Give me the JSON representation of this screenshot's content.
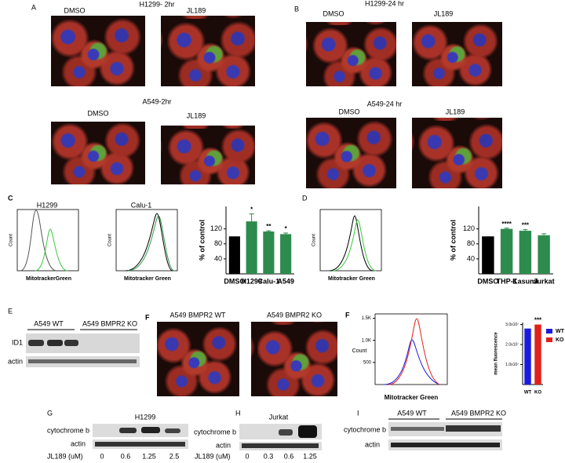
{
  "panels": {
    "A": {
      "label": "A",
      "top": {
        "title": "H1299- 2hr",
        "left": "DMSO",
        "right": "JL189"
      },
      "bottom": {
        "title": "A549-2hr",
        "left": "DMSO",
        "right": "JL189"
      }
    },
    "B": {
      "label": "B",
      "top": {
        "title": "H1299-24 hr",
        "left": "DMSO",
        "right": "JL189"
      },
      "bottom": {
        "title": "A549-24 hr",
        "left": "DMSO",
        "right": "JL189"
      }
    },
    "C": {
      "label": "C",
      "histograms": [
        {
          "title": "H1299",
          "ylabel": "Count",
          "xlabel": "MitotrackerGreen"
        },
        {
          "title": "Calu-1",
          "ylabel": "Count",
          "xlabel": "Mitotracker Green"
        }
      ],
      "bar_chart": {
        "type": "bar",
        "ylabel": "% of control",
        "categories": [
          "DMSO",
          "H1299",
          "Calu-1",
          "A549"
        ],
        "values": [
          100,
          140,
          113,
          106
        ],
        "errors": [
          null,
          20,
          2,
          3
        ],
        "significance": [
          null,
          "*",
          "**",
          "*"
        ],
        "colors": [
          "#000000",
          "#2e8b4e",
          "#2e8b4e",
          "#2e8b4e"
        ],
        "ylim": [
          0,
          180
        ],
        "yticks": [
          40,
          80,
          120
        ]
      }
    },
    "D": {
      "label": "D",
      "histogram": {
        "ylabel": "Count",
        "xlabel": "Mitotracker Green"
      },
      "bar_chart": {
        "type": "bar",
        "ylabel": "% of control",
        "categories": [
          "DMSO",
          "THP-1",
          "Kasumi",
          "Jurkat"
        ],
        "values": [
          100,
          120,
          115,
          103
        ],
        "errors": [
          null,
          2,
          3,
          4
        ],
        "significance": [
          null,
          "****",
          "***",
          null
        ],
        "colors": [
          "#000000",
          "#2e8b4e",
          "#2e8b4e",
          "#2e8b4e"
        ],
        "ylim": [
          0,
          180
        ],
        "yticks": [
          40,
          80,
          120
        ]
      }
    },
    "E": {
      "label": "E",
      "groups": [
        "A549 WT",
        "A549 BMPR2 KO"
      ],
      "rows": [
        "ID1",
        "actin"
      ]
    },
    "F1": {
      "label": "F",
      "left": "A549 BMPR2 WT",
      "right": "A549 BMPR2 KO"
    },
    "F2": {
      "label": "F",
      "flow": {
        "ylabel": "Count",
        "xlabel": "Mitotracker Green",
        "ylim": [
          0,
          1600
        ],
        "yticks": [
          500,
          {
            "value": 1000,
            "label": "1.0K"
          },
          {
            "value": 1500,
            "label": "1.5K"
          }
        ]
      },
      "bar_chart": {
        "type": "bar",
        "ylabel": "mean fluorescence",
        "categories": [
          "WT",
          "KO"
        ],
        "values": [
          28000000,
          30000000
        ],
        "errors": [
          null,
          null
        ],
        "significance": [
          null,
          "***"
        ],
        "colors": [
          "#1a1adf",
          "#e0201a"
        ],
        "ylim": [
          0,
          31000000
        ],
        "yticks": [
          {
            "value": 10000000,
            "label": "1.0x10⁷"
          },
          {
            "value": 20000000,
            "label": "2.0x10⁷"
          },
          {
            "value": 30000000,
            "label": "3.0x10⁷"
          }
        ],
        "legend": [
          "WT",
          "KO"
        ]
      }
    },
    "G": {
      "label": "G",
      "title": "H1299",
      "rows": [
        "cytochrome b",
        "actin"
      ],
      "dose_label": "JL189 (uM)",
      "doses": [
        "0",
        "0.6",
        "1.25",
        "2.5"
      ]
    },
    "H": {
      "label": "H",
      "title": "Jurkat",
      "rows": [
        "cytochrome b",
        "actin"
      ],
      "dose_label": "JL189 (uM)",
      "doses": [
        "0",
        "0.3",
        "0.6",
        "1.25"
      ]
    },
    "I": {
      "label": "I",
      "groups": [
        "A549 WT",
        "A549 BMPR2 KO"
      ],
      "rows": [
        "cytochrome b",
        "actin"
      ]
    }
  }
}
